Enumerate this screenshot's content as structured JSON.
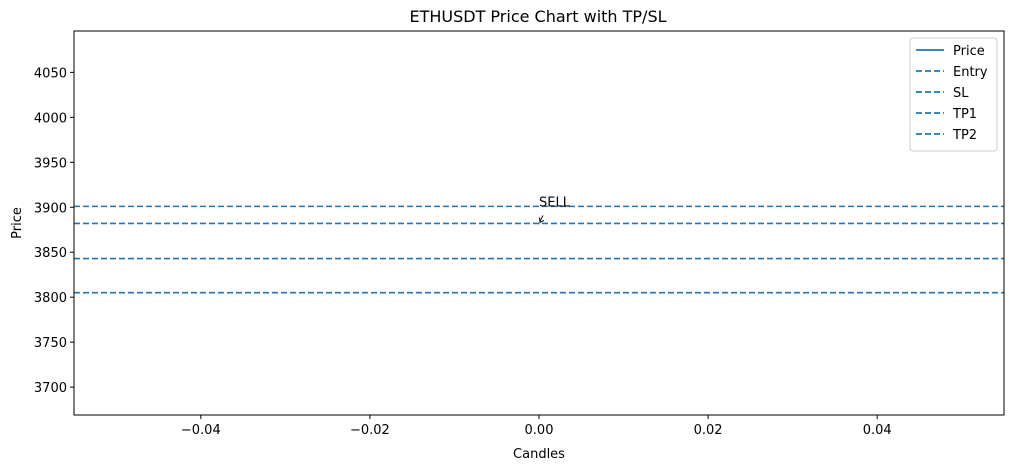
{
  "chart_data": {
    "type": "line",
    "title": "ETHUSDT Price Chart with TP/SL",
    "xlabel": "Candles",
    "ylabel": "Price",
    "xlim": [
      -0.055,
      0.055
    ],
    "ylim": [
      3669,
      4096
    ],
    "xticks": [
      -0.04,
      -0.02,
      0.0,
      0.02,
      0.04
    ],
    "xtick_labels": [
      "−0.04",
      "−0.02",
      "0.00",
      "0.02",
      "0.04"
    ],
    "yticks": [
      3700,
      3750,
      3800,
      3850,
      3900,
      3950,
      4000,
      4050
    ],
    "ytick_labels": [
      "3700",
      "3750",
      "3800",
      "3850",
      "3900",
      "3950",
      "4000",
      "4050"
    ],
    "grid": false,
    "legend_position": "top-right",
    "series": [
      {
        "name": "Price",
        "style": "solid",
        "color": "#1f77b4",
        "x": [
          0
        ],
        "y": [
          3882
        ]
      }
    ],
    "hlines": [
      {
        "name": "Entry",
        "y": 3882,
        "style": "dashed",
        "color": "#1f77b4"
      },
      {
        "name": "SL",
        "y": 3901,
        "style": "dashed",
        "color": "#1f77b4"
      },
      {
        "name": "TP1",
        "y": 3843,
        "style": "dashed",
        "color": "#1f77b4"
      },
      {
        "name": "TP2",
        "y": 3805,
        "style": "dashed",
        "color": "#1f77b4"
      }
    ],
    "annotations": [
      {
        "text": "SELL",
        "x": 0,
        "y": 3882
      }
    ]
  }
}
